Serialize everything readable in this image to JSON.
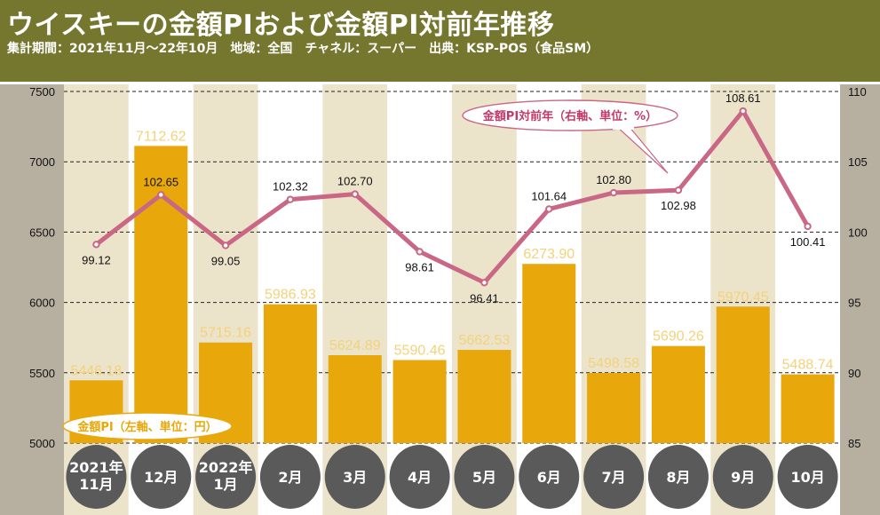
{
  "header": {
    "title": "ウイスキーの金額PIおよび金額PI対前年推移",
    "subtitle": "集計期間：2021年11月～22年10月　地域：全国　チャネル：スーパー　出典：KSP-POS（食品SM）"
  },
  "colors": {
    "header_bg": "#75772f",
    "bar": "#e8a70a",
    "bar_label": "#f3d27a",
    "line": "#c96785",
    "callout_border": "#c96785",
    "callout_text": "#c23a6a",
    "band_light": "#ece3cb",
    "band_white": "#ffffff",
    "gutter": "#b7b0a1",
    "pill": "#5a5a5a"
  },
  "chart_data": {
    "type": "bar+line",
    "categories": [
      "2021年\n11月",
      "12月",
      "2022年\n1月",
      "2月",
      "3月",
      "4月",
      "5月",
      "6月",
      "7月",
      "8月",
      "9月",
      "10月"
    ],
    "series": [
      {
        "name": "金額PI（左軸、単位：円）",
        "type": "bar",
        "axis": "left",
        "values": [
          5446.18,
          7112.62,
          5715.16,
          5986.93,
          5624.89,
          5590.46,
          5662.53,
          6273.9,
          5498.58,
          5690.26,
          5970.45,
          5488.74
        ],
        "labels": [
          "5446.18",
          "7112.62",
          "5715.16",
          "5986.93",
          "5624.89",
          "5590.46",
          "5662.53",
          "6273.90",
          "5498.58",
          "5690.26",
          "5970.45",
          "5488.74"
        ]
      },
      {
        "name": "金額PI対前年（右軸、単位：%）",
        "type": "line",
        "axis": "right",
        "values": [
          99.12,
          102.65,
          99.05,
          102.32,
          102.7,
          98.61,
          96.41,
          101.64,
          102.8,
          102.98,
          108.61,
          100.41
        ],
        "labels": [
          "99.12",
          "102.65",
          "99.05",
          "102.32",
          "102.70",
          "98.61",
          "96.41",
          "101.64",
          "102.80",
          "102.98",
          "108.61",
          "100.41"
        ]
      }
    ],
    "y_left": {
      "min": 5000,
      "max": 7500,
      "ticks": [
        "5000",
        "5500",
        "6000",
        "6500",
        "7000",
        "7500"
      ]
    },
    "y_right": {
      "min": 85,
      "max": 110,
      "ticks": [
        "85",
        "90",
        "95",
        "100",
        "105",
        "110"
      ]
    },
    "legend": {
      "bar": "金額PI（左軸、単位：円）",
      "line": "金額PI対前年（右軸、単位：%）"
    }
  }
}
